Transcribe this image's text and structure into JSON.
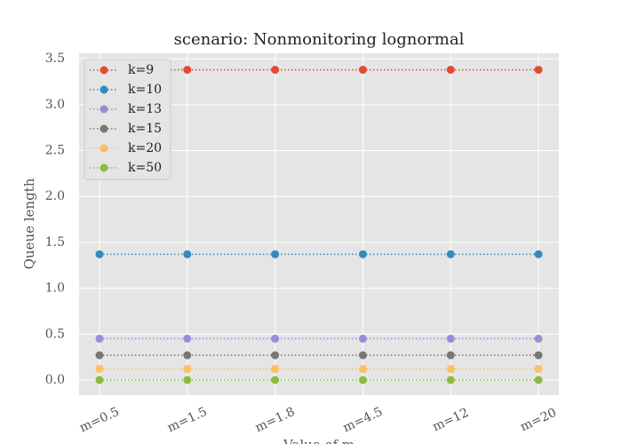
{
  "chart_data": {
    "type": "line",
    "title": "scenario: Nonmonitoring lognormal",
    "x_label": "Value of m",
    "y_label": "Queue length",
    "categories": [
      "m=0.5",
      "m=1.5",
      "m=1.8",
      "m=4.5",
      "m=12",
      "m=20"
    ],
    "series": [
      {
        "name": "k=9",
        "color": "#E24A33",
        "values": [
          3.38,
          3.38,
          3.38,
          3.38,
          3.38,
          3.38
        ]
      },
      {
        "name": "k=10",
        "color": "#348ABD",
        "values": [
          1.37,
          1.37,
          1.37,
          1.37,
          1.37,
          1.37
        ]
      },
      {
        "name": "k=13",
        "color": "#988ED5",
        "values": [
          0.45,
          0.45,
          0.45,
          0.45,
          0.45,
          0.45
        ]
      },
      {
        "name": "k=15",
        "color": "#777777",
        "values": [
          0.27,
          0.27,
          0.27,
          0.27,
          0.27,
          0.27
        ]
      },
      {
        "name": "k=20",
        "color": "#FBC15E",
        "values": [
          0.12,
          0.12,
          0.12,
          0.12,
          0.12,
          0.12
        ]
      },
      {
        "name": "k=50",
        "color": "#8EBA42",
        "values": [
          0.0,
          0.0,
          0.0,
          0.0,
          0.0,
          0.0
        ]
      }
    ],
    "ylim": [
      -0.165,
      3.56
    ],
    "yticks": [
      {
        "value": 0,
        "label": "0.0"
      },
      0.5,
      {
        "value": 1,
        "label": "1.0"
      },
      1.5,
      {
        "value": 2,
        "label": "2.0"
      },
      2.5,
      {
        "value": 3,
        "label": "3.0"
      },
      3.5
    ],
    "grid": true,
    "legend": "upper-left"
  }
}
